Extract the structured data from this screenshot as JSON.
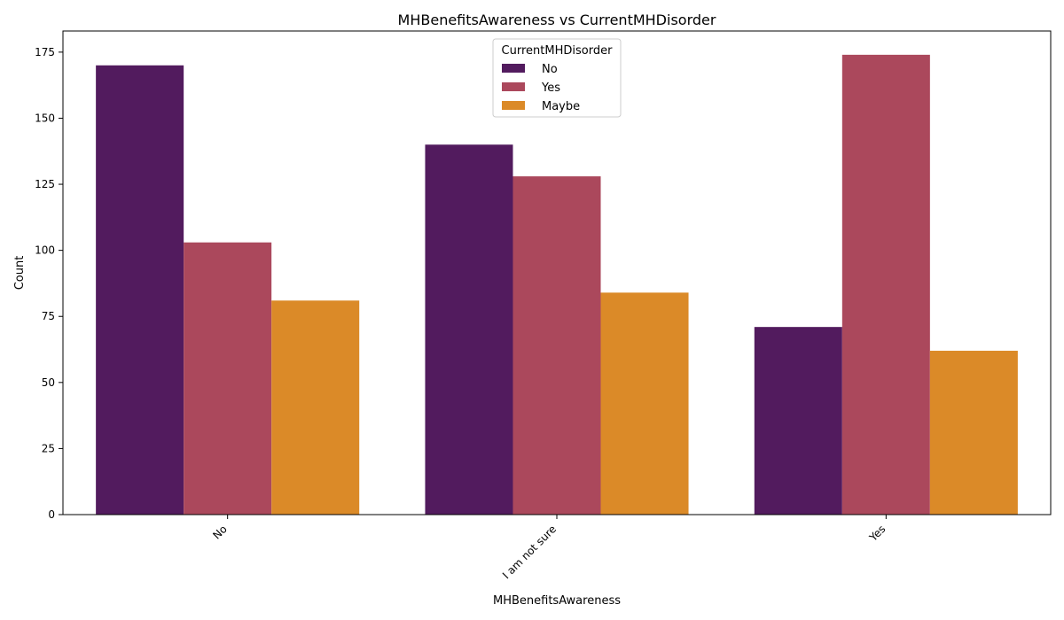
{
  "chart_data": {
    "type": "bar",
    "title": "MHBenefitsAwareness vs CurrentMHDisorder",
    "xlabel": "MHBenefitsAwareness",
    "ylabel": "Count",
    "categories": [
      "No",
      "I am not sure",
      "Yes"
    ],
    "series": [
      {
        "name": "No",
        "color": "#521b5e",
        "values": [
          170,
          140,
          71
        ]
      },
      {
        "name": "Yes",
        "color": "#ab485c",
        "values": [
          103,
          128,
          174
        ]
      },
      {
        "name": "Maybe",
        "color": "#db8a28",
        "values": [
          81,
          84,
          62
        ]
      }
    ],
    "ylim": [
      0,
      183
    ],
    "yticks": [
      0,
      25,
      50,
      75,
      100,
      125,
      150,
      175
    ],
    "grid": false,
    "legend": {
      "title": "CurrentMHDisorder",
      "placement": "top-center"
    }
  }
}
